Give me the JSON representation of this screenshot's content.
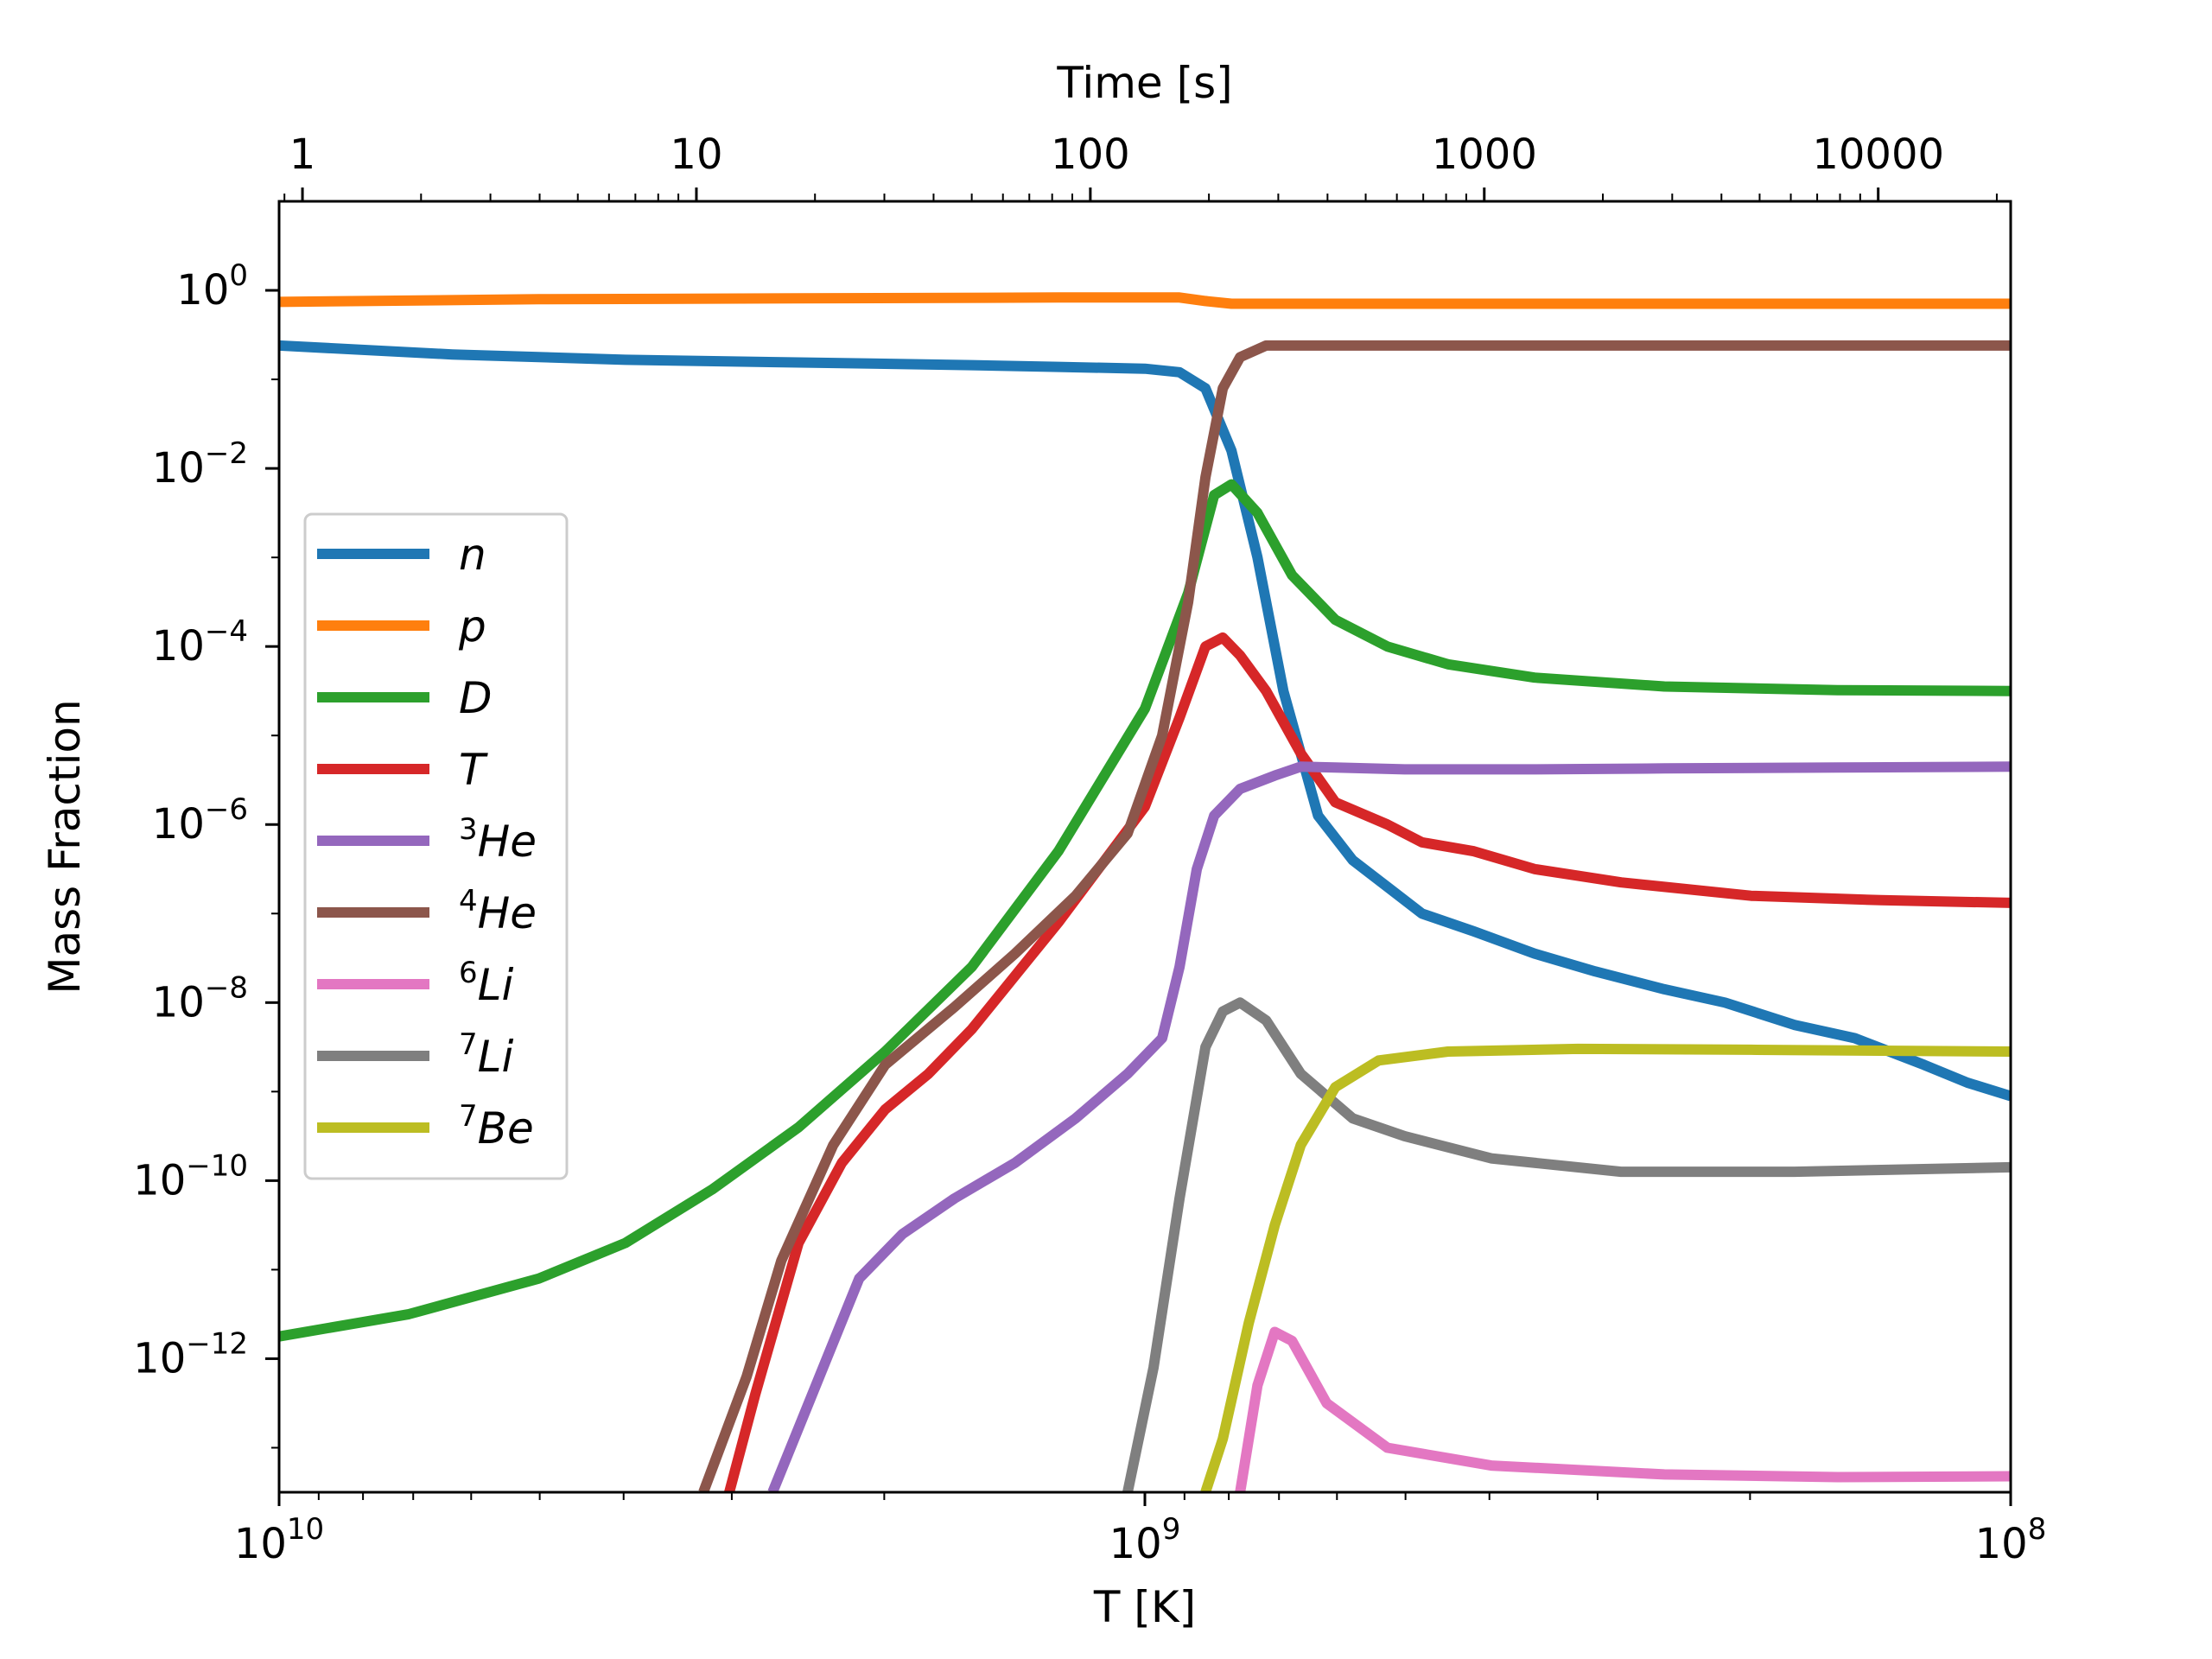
{
  "chart_data": {
    "type": "line",
    "title": "",
    "xlabel": "T [K]",
    "ylabel": "Mass Fraction",
    "x2label": "Time [s]",
    "x_scale": "log-reversed",
    "y_scale": "log",
    "xlim": [
      10000000000.0,
      100000000.0
    ],
    "ylim_exp": [
      -13.5,
      1
    ],
    "grid": false,
    "legend_position": "center-left",
    "x_ticks": [
      {
        "value": 10000000000.0,
        "base": "10",
        "exp": "10"
      },
      {
        "value": 1000000000.0,
        "base": "10",
        "exp": "9"
      },
      {
        "value": 100000000.0,
        "base": "10",
        "exp": "8"
      }
    ],
    "top_ticks": [
      {
        "value": 1,
        "label": "1"
      },
      {
        "value": 10,
        "label": "10"
      },
      {
        "value": 100,
        "label": "100"
      },
      {
        "value": 1000,
        "label": "1000"
      },
      {
        "value": 10000,
        "label": "10000"
      }
    ],
    "time_axis_logT_per_decade_t": 0.455,
    "time_axis_t1_logT": 9.973,
    "y_ticks": [
      {
        "exp_value": 0,
        "base": "10",
        "exp": "0"
      },
      {
        "exp_value": -2,
        "base": "10",
        "exp": "−2"
      },
      {
        "exp_value": -4,
        "base": "10",
        "exp": "−4"
      },
      {
        "exp_value": -6,
        "base": "10",
        "exp": "−6"
      },
      {
        "exp_value": -8,
        "base": "10",
        "exp": "−8"
      },
      {
        "exp_value": -10,
        "base": "10",
        "exp": "−10"
      },
      {
        "exp_value": -12,
        "base": "10",
        "exp": "−12"
      }
    ],
    "series": [
      {
        "name": "n",
        "sup": "",
        "label": "n",
        "color": "#1f77b4",
        "points": [
          [
            10,
            -0.62
          ],
          [
            9.8,
            -0.72
          ],
          [
            9.6,
            -0.78
          ],
          [
            9.4,
            -0.81
          ],
          [
            9.2,
            -0.84
          ],
          [
            9.1,
            -0.86
          ],
          [
            9.0,
            -0.88
          ],
          [
            8.96,
            -0.92
          ],
          [
            8.93,
            -1.1
          ],
          [
            8.9,
            -1.8
          ],
          [
            8.87,
            -3.0
          ],
          [
            8.84,
            -4.5
          ],
          [
            8.8,
            -5.9
          ],
          [
            8.76,
            -6.4
          ],
          [
            8.72,
            -6.7
          ],
          [
            8.68,
            -7.0
          ],
          [
            8.62,
            -7.2
          ],
          [
            8.55,
            -7.45
          ],
          [
            8.48,
            -7.65
          ],
          [
            8.4,
            -7.85
          ],
          [
            8.33,
            -8.0
          ],
          [
            8.25,
            -8.25
          ],
          [
            8.18,
            -8.4
          ],
          [
            8.1,
            -8.7
          ],
          [
            8.05,
            -8.9
          ],
          [
            8.0,
            -9.05
          ]
        ]
      },
      {
        "name": "p",
        "sup": "",
        "label": "p",
        "color": "#ff7f0e",
        "points": [
          [
            10,
            -0.13
          ],
          [
            9.7,
            -0.1
          ],
          [
            9.4,
            -0.09
          ],
          [
            9.1,
            -0.08
          ],
          [
            8.96,
            -0.08
          ],
          [
            8.93,
            -0.12
          ],
          [
            8.9,
            -0.15
          ],
          [
            8.6,
            -0.15
          ],
          [
            8.3,
            -0.15
          ],
          [
            8.0,
            -0.15
          ]
        ]
      },
      {
        "name": "D",
        "sup": "",
        "label": "D",
        "color": "#2ca02c",
        "points": [
          [
            10,
            -11.75
          ],
          [
            9.85,
            -11.5
          ],
          [
            9.7,
            -11.1
          ],
          [
            9.6,
            -10.7
          ],
          [
            9.5,
            -10.1
          ],
          [
            9.4,
            -9.4
          ],
          [
            9.3,
            -8.55
          ],
          [
            9.2,
            -7.6
          ],
          [
            9.1,
            -6.3
          ],
          [
            9.0,
            -4.7
          ],
          [
            8.95,
            -3.4
          ],
          [
            8.92,
            -2.3
          ],
          [
            8.9,
            -2.18
          ],
          [
            8.87,
            -2.5
          ],
          [
            8.83,
            -3.2
          ],
          [
            8.78,
            -3.7
          ],
          [
            8.72,
            -4.0
          ],
          [
            8.65,
            -4.2
          ],
          [
            8.55,
            -4.35
          ],
          [
            8.4,
            -4.45
          ],
          [
            8.2,
            -4.49
          ],
          [
            8.0,
            -4.5
          ]
        ]
      },
      {
        "name": "T",
        "sup": "",
        "label": "T",
        "color": "#d62728",
        "points": [
          [
            9.48,
            -13.5
          ],
          [
            9.45,
            -12.4
          ],
          [
            9.4,
            -10.7
          ],
          [
            9.35,
            -9.8
          ],
          [
            9.3,
            -9.2
          ],
          [
            9.25,
            -8.8
          ],
          [
            9.2,
            -8.3
          ],
          [
            9.15,
            -7.7
          ],
          [
            9.1,
            -7.1
          ],
          [
            9.05,
            -6.45
          ],
          [
            9.0,
            -5.8
          ],
          [
            8.96,
            -4.8
          ],
          [
            8.93,
            -4.0
          ],
          [
            8.91,
            -3.9
          ],
          [
            8.89,
            -4.1
          ],
          [
            8.86,
            -4.5
          ],
          [
            8.82,
            -5.2
          ],
          [
            8.78,
            -5.75
          ],
          [
            8.72,
            -6.0
          ],
          [
            8.68,
            -6.2
          ],
          [
            8.62,
            -6.3
          ],
          [
            8.55,
            -6.5
          ],
          [
            8.45,
            -6.65
          ],
          [
            8.3,
            -6.8
          ],
          [
            8.15,
            -6.85
          ],
          [
            8.0,
            -6.88
          ]
        ]
      },
      {
        "name": "3He",
        "sup": "3",
        "label": "He",
        "color": "#9467bd",
        "points": [
          [
            9.43,
            -13.5
          ],
          [
            9.38,
            -12.3
          ],
          [
            9.33,
            -11.1
          ],
          [
            9.28,
            -10.6
          ],
          [
            9.22,
            -10.2
          ],
          [
            9.15,
            -9.8
          ],
          [
            9.08,
            -9.3
          ],
          [
            9.02,
            -8.8
          ],
          [
            8.98,
            -8.4
          ],
          [
            8.96,
            -7.6
          ],
          [
            8.94,
            -6.5
          ],
          [
            8.92,
            -5.9
          ],
          [
            8.89,
            -5.6
          ],
          [
            8.85,
            -5.45
          ],
          [
            8.82,
            -5.35
          ],
          [
            8.78,
            -5.36
          ],
          [
            8.7,
            -5.38
          ],
          [
            8.55,
            -5.38
          ],
          [
            8.4,
            -5.37
          ],
          [
            8.2,
            -5.36
          ],
          [
            8.0,
            -5.35
          ]
        ]
      },
      {
        "name": "4He",
        "sup": "4",
        "label": "He",
        "color": "#8c564b",
        "points": [
          [
            9.51,
            -13.5
          ],
          [
            9.46,
            -12.2
          ],
          [
            9.42,
            -10.9
          ],
          [
            9.36,
            -9.6
          ],
          [
            9.3,
            -8.7
          ],
          [
            9.22,
            -8.05
          ],
          [
            9.15,
            -7.45
          ],
          [
            9.08,
            -6.8
          ],
          [
            9.02,
            -6.1
          ],
          [
            8.98,
            -5.0
          ],
          [
            8.95,
            -3.5
          ],
          [
            8.93,
            -2.1
          ],
          [
            8.91,
            -1.1
          ],
          [
            8.89,
            -0.75
          ],
          [
            8.86,
            -0.62
          ],
          [
            8.8,
            -0.62
          ],
          [
            8.5,
            -0.62
          ],
          [
            8.0,
            -0.62
          ]
        ]
      },
      {
        "name": "6Li",
        "sup": "6",
        "label": "Li",
        "color": "#e377c2",
        "points": [
          [
            8.89,
            -13.5
          ],
          [
            8.87,
            -12.3
          ],
          [
            8.85,
            -11.7
          ],
          [
            8.83,
            -11.8
          ],
          [
            8.79,
            -12.5
          ],
          [
            8.72,
            -13.0
          ],
          [
            8.6,
            -13.2
          ],
          [
            8.4,
            -13.3
          ],
          [
            8.2,
            -13.33
          ],
          [
            8.0,
            -13.32
          ]
        ]
      },
      {
        "name": "7Li",
        "sup": "7",
        "label": "Li",
        "color": "#7f7f7f",
        "points": [
          [
            9.02,
            -13.5
          ],
          [
            8.99,
            -12.1
          ],
          [
            8.96,
            -10.2
          ],
          [
            8.93,
            -8.5
          ],
          [
            8.91,
            -8.1
          ],
          [
            8.89,
            -8.0
          ],
          [
            8.86,
            -8.2
          ],
          [
            8.82,
            -8.8
          ],
          [
            8.76,
            -9.3
          ],
          [
            8.7,
            -9.5
          ],
          [
            8.6,
            -9.75
          ],
          [
            8.45,
            -9.9
          ],
          [
            8.25,
            -9.9
          ],
          [
            8.0,
            -9.85
          ]
        ]
      },
      {
        "name": "7Be",
        "sup": "7",
        "label": "Be",
        "color": "#bcbd22",
        "points": [
          [
            8.93,
            -13.5
          ],
          [
            8.91,
            -12.9
          ],
          [
            8.88,
            -11.6
          ],
          [
            8.85,
            -10.5
          ],
          [
            8.82,
            -9.6
          ],
          [
            8.78,
            -8.95
          ],
          [
            8.73,
            -8.65
          ],
          [
            8.65,
            -8.55
          ],
          [
            8.5,
            -8.52
          ],
          [
            8.3,
            -8.53
          ],
          [
            8.0,
            -8.55
          ]
        ]
      }
    ]
  }
}
